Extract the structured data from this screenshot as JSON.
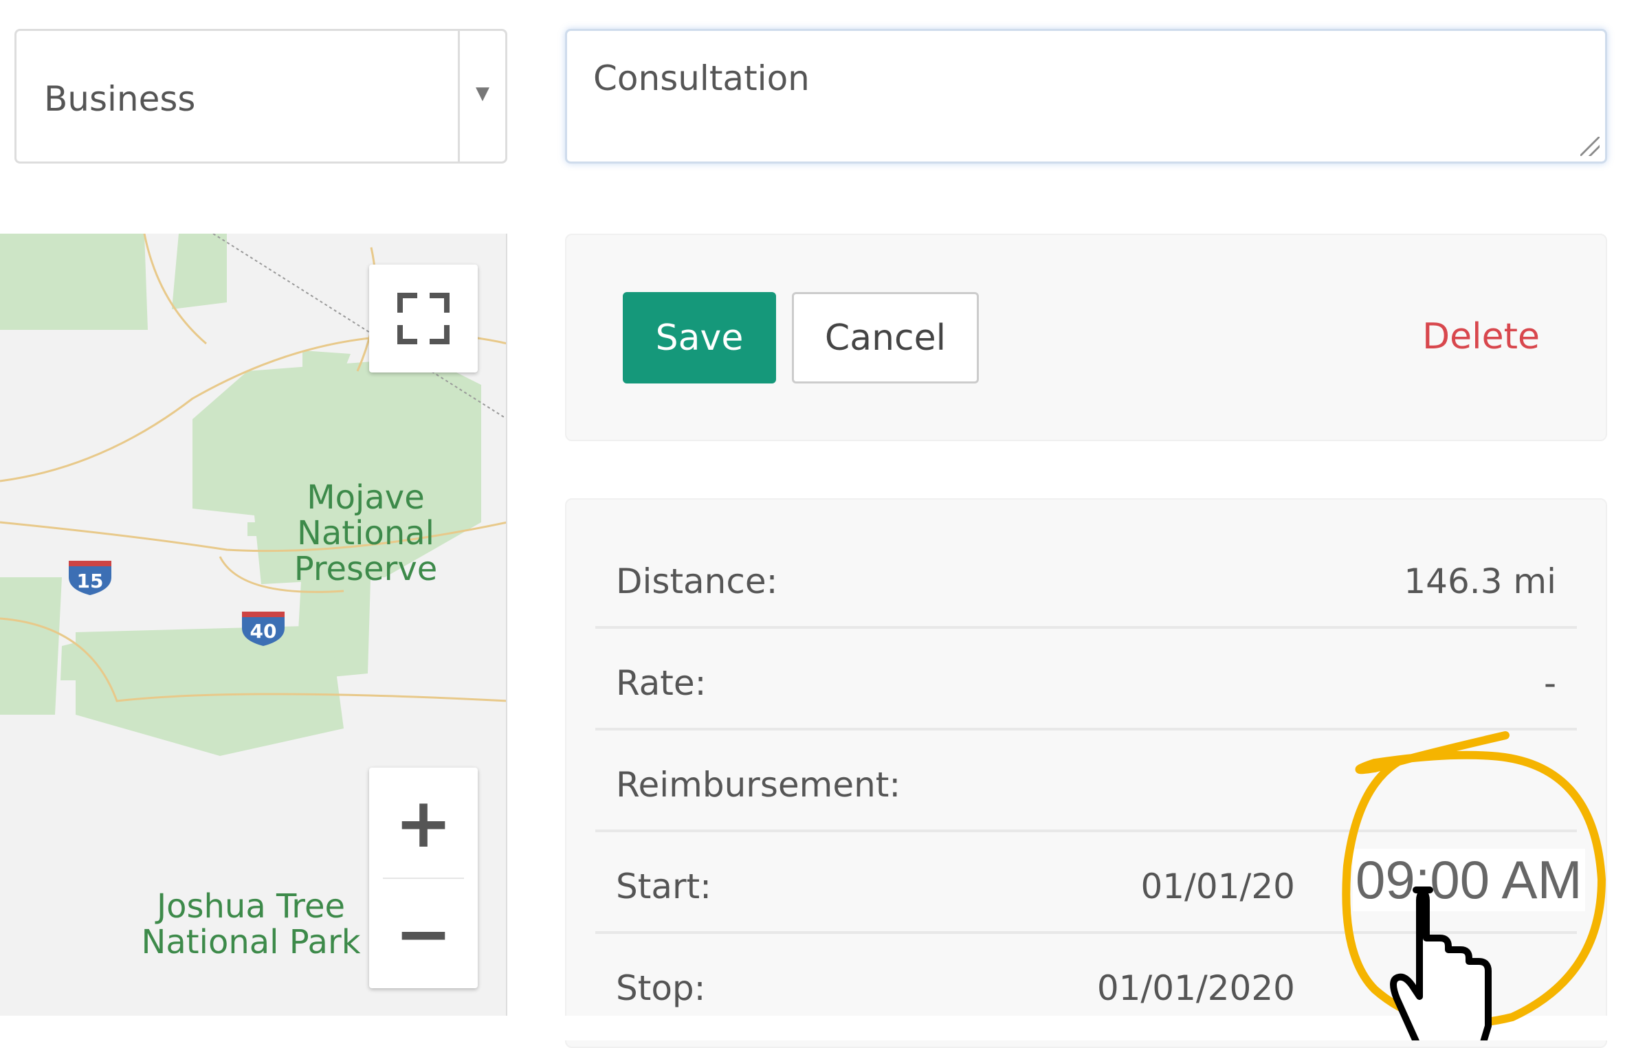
{
  "category_select": {
    "value": "Business"
  },
  "description": {
    "value": "Consultation"
  },
  "map": {
    "labels": [
      "Mojave National Preserve",
      "Joshua Tree National Park"
    ],
    "shields": [
      "15",
      "40"
    ],
    "controls": {
      "fullscreen": "fullscreen-icon",
      "zoom_in": "+",
      "zoom_out": "−"
    }
  },
  "actions": {
    "save": "Save",
    "cancel": "Cancel",
    "delete": "Delete",
    "colors": {
      "save": "#15987a",
      "delete": "#d8474d"
    }
  },
  "details": [
    {
      "label": "Distance:",
      "value": "146.3 mi"
    },
    {
      "label": "Rate:",
      "value": "-"
    },
    {
      "label": "Reimbursement:",
      "value": ""
    },
    {
      "label": "Start:",
      "value": "01/01/20"
    },
    {
      "label": "Stop:",
      "value": "01/01/2020"
    }
  ],
  "highlight": {
    "text": "09:00 AM",
    "color": "#f5b400"
  }
}
